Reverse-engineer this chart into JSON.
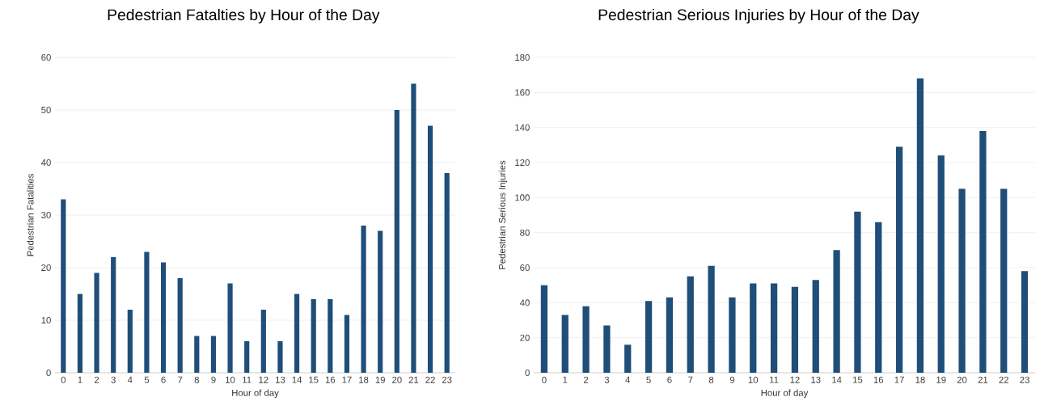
{
  "chart_data": [
    {
      "type": "bar",
      "title": "Pedestrian Fatalties by Hour of the Day",
      "xlabel": "Hour of day",
      "ylabel": "Pedestrian Fatalities",
      "categories": [
        "0",
        "1",
        "2",
        "3",
        "4",
        "5",
        "6",
        "7",
        "8",
        "9",
        "10",
        "11",
        "12",
        "13",
        "14",
        "15",
        "16",
        "17",
        "18",
        "19",
        "20",
        "21",
        "22",
        "23"
      ],
      "values": [
        33,
        15,
        19,
        22,
        12,
        23,
        21,
        18,
        7,
        7,
        17,
        6,
        12,
        6,
        15,
        14,
        14,
        11,
        28,
        27,
        50,
        55,
        47,
        38
      ],
      "color": "#1f4e79",
      "ylim": [
        0,
        60
      ],
      "yticks": [
        0,
        10,
        20,
        30,
        40,
        50,
        60
      ],
      "grid": "y"
    },
    {
      "type": "bar",
      "title": "Pedestrian Serious Injuries by Hour of the Day",
      "xlabel": "Hour of day",
      "ylabel": "Pedestrian Serious Injuries",
      "categories": [
        "0",
        "1",
        "2",
        "3",
        "4",
        "5",
        "6",
        "7",
        "8",
        "9",
        "10",
        "11",
        "12",
        "13",
        "14",
        "15",
        "16",
        "17",
        "18",
        "19",
        "20",
        "21",
        "22",
        "23"
      ],
      "values": [
        50,
        33,
        38,
        27,
        16,
        41,
        43,
        55,
        61,
        43,
        51,
        51,
        49,
        53,
        70,
        92,
        86,
        129,
        168,
        124,
        105,
        138,
        105,
        58
      ],
      "color": "#1f4e79",
      "ylim": [
        0,
        180
      ],
      "yticks": [
        0,
        20,
        40,
        60,
        80,
        100,
        120,
        140,
        160,
        180
      ],
      "grid": "y"
    }
  ]
}
